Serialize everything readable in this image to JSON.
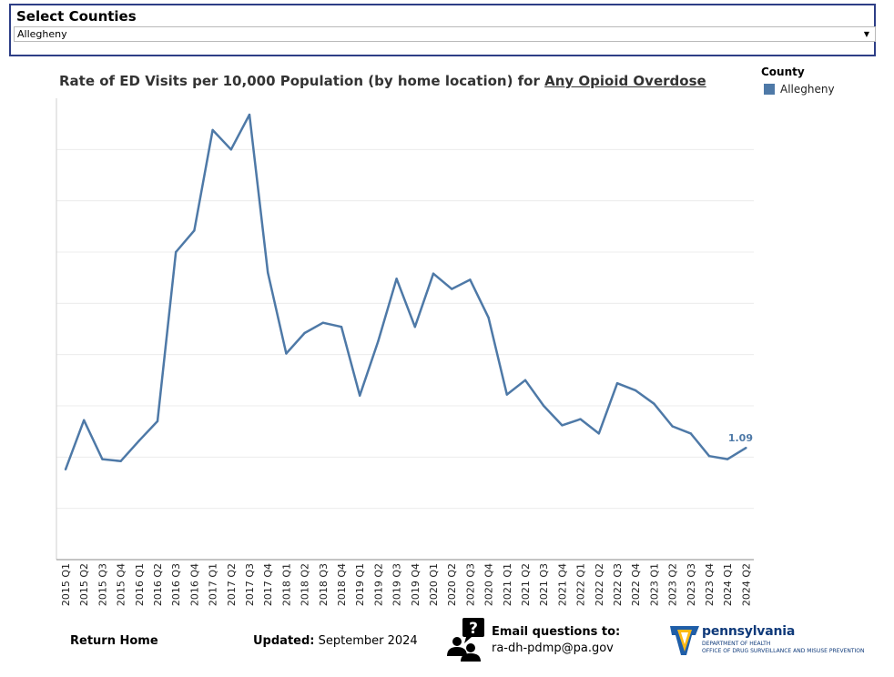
{
  "filter": {
    "title": "Select Counties",
    "selected": "Allegheny",
    "arrow": "▼"
  },
  "chart_title": {
    "prefix": "Rate of ED Visits per 10,000 Population (by home location) for ",
    "measure": "Any Opioid Overdose"
  },
  "legend": {
    "title": "County",
    "items": [
      {
        "label": "Allegheny",
        "color": "#4e79a7"
      }
    ]
  },
  "chart_data": {
    "type": "line",
    "title": "Rate of ED Visits per 10,000 Population (by home location) for Any Opioid Overdose",
    "xlabel": "",
    "ylabel": "",
    "ylim": [
      0,
      4.5
    ],
    "gridlines": [
      0.5,
      1.0,
      1.5,
      2.0,
      2.5,
      3.0,
      3.5,
      4.0
    ],
    "grid": true,
    "legend_position": "top-right",
    "categories": [
      "2015 Q1",
      "2015 Q2",
      "2015 Q3",
      "2015 Q4",
      "2016 Q1",
      "2016 Q2",
      "2016 Q3",
      "2016 Q4",
      "2017 Q1",
      "2017 Q2",
      "2017 Q3",
      "2017 Q4",
      "2018 Q1",
      "2018 Q2",
      "2018 Q3",
      "2018 Q4",
      "2019 Q1",
      "2019 Q2",
      "2019 Q3",
      "2019 Q4",
      "2020 Q1",
      "2020 Q2",
      "2020 Q3",
      "2020 Q4",
      "2021 Q1",
      "2021 Q2",
      "2021 Q3",
      "2021 Q4",
      "2022 Q1",
      "2022 Q2",
      "2022 Q3",
      "2022 Q4",
      "2023 Q1",
      "2023 Q2",
      "2023 Q3",
      "2023 Q4",
      "2024 Q1",
      "2024 Q2"
    ],
    "series": [
      {
        "name": "Allegheny",
        "color": "#4e79a7",
        "values": [
          0.88,
          1.36,
          0.98,
          0.96,
          1.16,
          1.35,
          3.0,
          3.21,
          4.19,
          4.0,
          4.34,
          2.8,
          2.01,
          2.21,
          2.31,
          2.27,
          1.6,
          2.13,
          2.74,
          2.27,
          2.79,
          2.64,
          2.73,
          2.36,
          1.61,
          1.75,
          1.5,
          1.31,
          1.37,
          1.23,
          1.72,
          1.65,
          1.52,
          1.3,
          1.23,
          1.01,
          0.98,
          1.09
        ]
      }
    ],
    "last_value_label": "1.09"
  },
  "footer": {
    "return_home": "Return Home",
    "updated_label": "Updated:",
    "updated_value": " September 2024",
    "email_label": "Email questions to:",
    "email_address": "ra-dh-pdmp@pa.gov",
    "logo_name": "pennsylvania",
    "logo_dept": "DEPARTMENT OF HEALTH",
    "logo_office": "OFFICE OF DRUG SURVEILLANCE AND MISUSE PREVENTION"
  }
}
